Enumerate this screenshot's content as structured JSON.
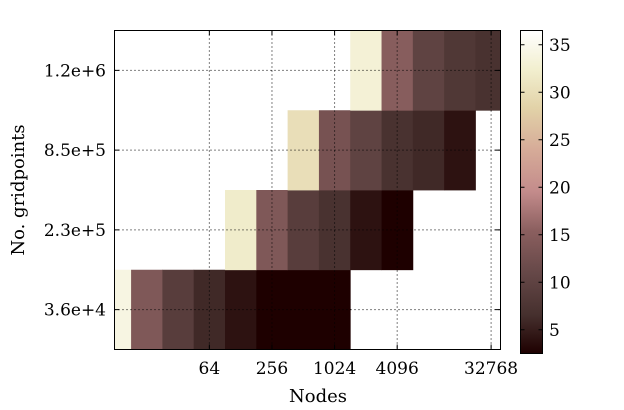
{
  "chart_data": {
    "type": "heatmap",
    "title": "",
    "xlabel": "Nodes",
    "ylabel": "No. gridpoints",
    "x_scale": "log2",
    "x_range_log2": [
      2.97,
      15.3
    ],
    "x_ticks": [
      64,
      256,
      1024,
      4096,
      32768
    ],
    "x_tick_labels": [
      "64",
      "256",
      "1024",
      "4096",
      "32768"
    ],
    "y_tick_labels": [
      "3.6e+4",
      "2.3e+5",
      "8.5e+5",
      "1.2e+6"
    ],
    "grid": true,
    "colormap": "pink",
    "colorbar": {
      "range": [
        2.5,
        36.5
      ],
      "ticks": [
        5,
        10,
        15,
        20,
        25,
        30,
        35
      ],
      "tick_labels": [
        "5",
        "10",
        "15",
        "20",
        "25",
        "30",
        "35"
      ]
    },
    "rows": [
      {
        "label": "3.6e+4",
        "nodes": [
          8,
          16,
          32,
          64,
          128,
          256,
          512,
          1024
        ],
        "values": [
          34,
          14,
          9,
          6,
          4,
          2.5,
          2.5,
          2.5
        ]
      },
      {
        "label": "2.3e+5",
        "nodes": [
          128,
          256,
          512,
          1024,
          2048,
          4096
        ],
        "values": [
          32,
          14,
          9,
          7,
          4,
          2.5
        ]
      },
      {
        "label": "8.5e+5",
        "nodes": [
          512,
          1024,
          2048,
          4096,
          8192,
          16384
        ],
        "values": [
          30,
          13,
          10,
          7,
          6,
          4
        ]
      },
      {
        "label": "1.2e+6",
        "nodes": [
          2048,
          4096,
          8192,
          16384,
          32768
        ],
        "values": [
          33,
          15,
          10,
          8,
          7
        ]
      }
    ]
  }
}
